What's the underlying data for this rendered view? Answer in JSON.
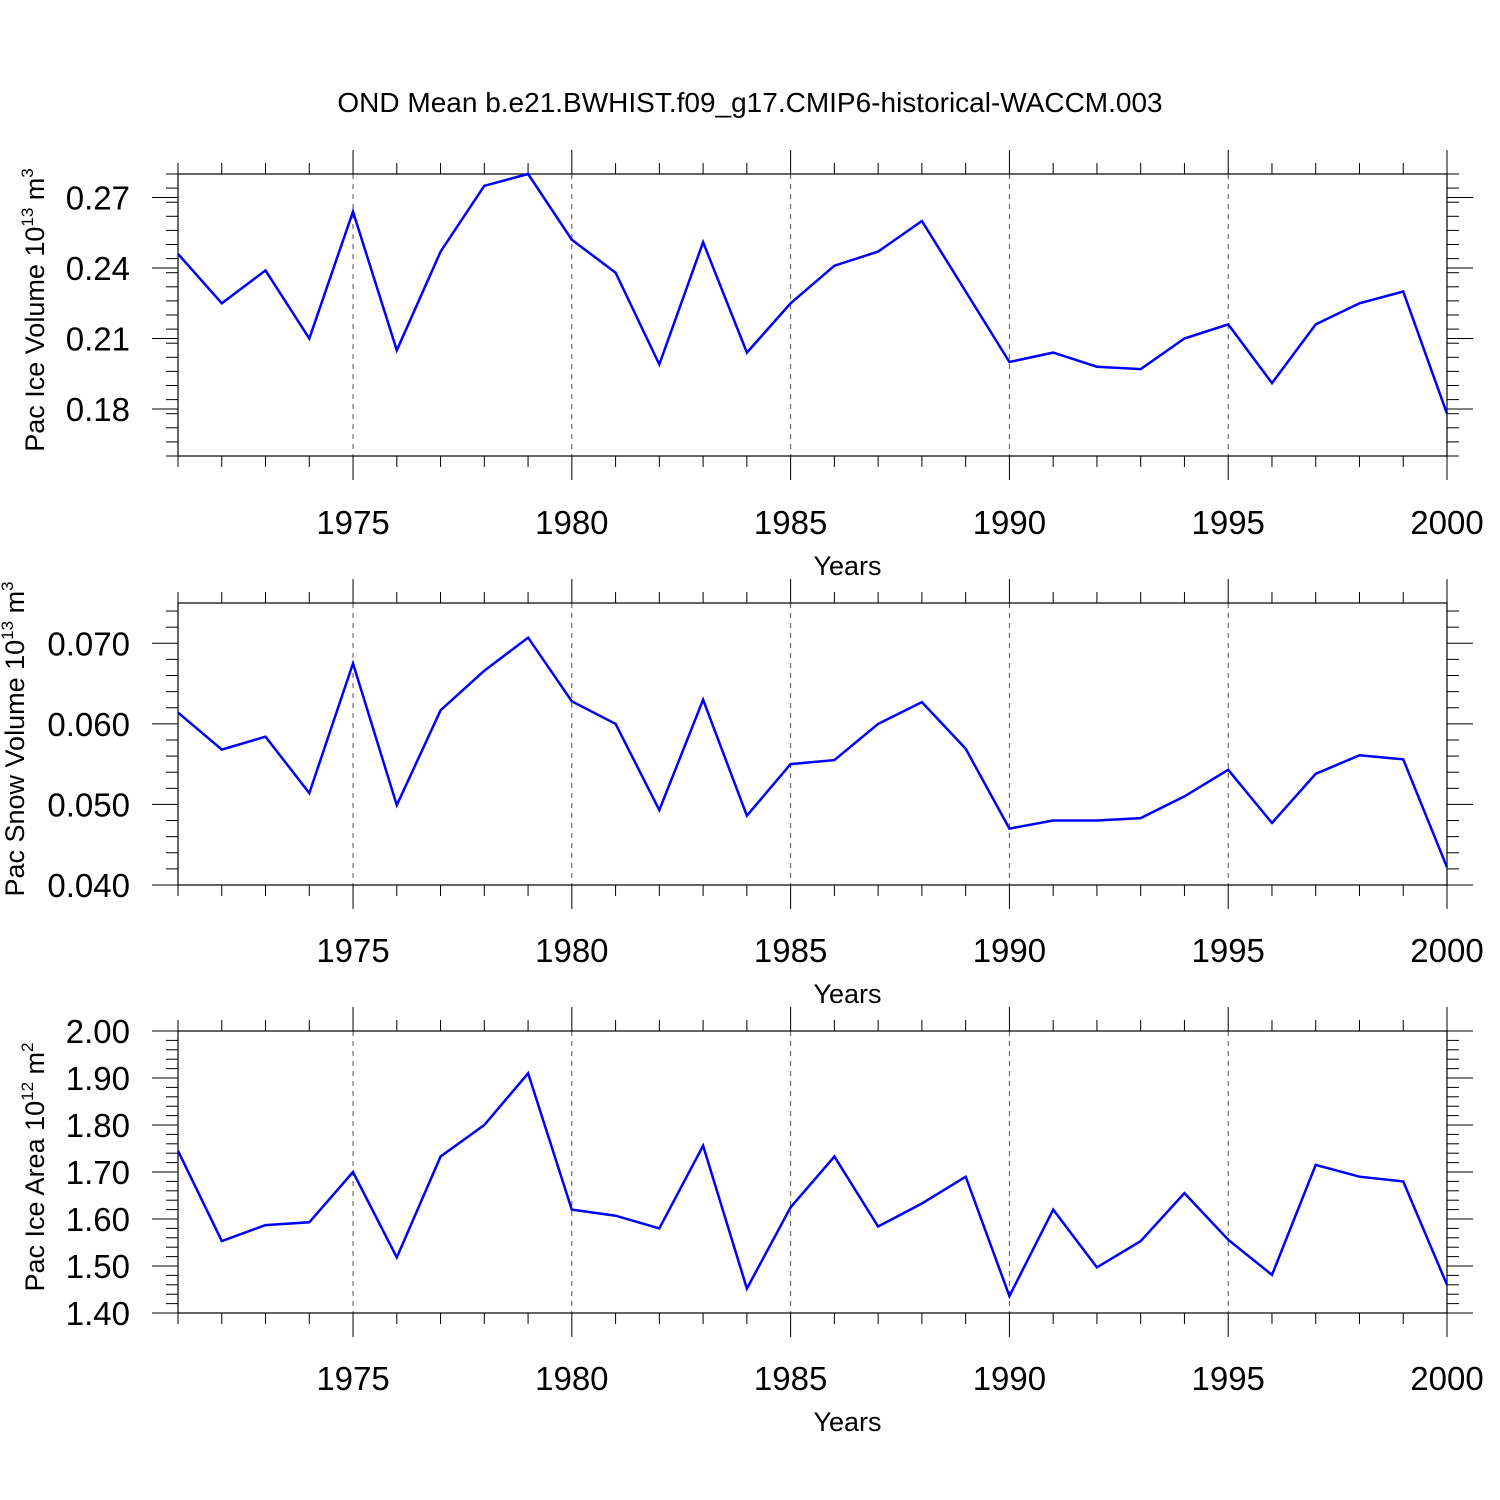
{
  "title": "OND Mean b.e21.BWHIST.f09_g17.CMIP6-historical-WACCM.003",
  "colors": {
    "series": "#0000ff",
    "axis": "#000000",
    "grid": "#555555"
  },
  "chart_data": [
    {
      "type": "line",
      "xlabel": "Years",
      "ylabel": {
        "text": "Pac Ice Volume 10",
        "exp": "13",
        "unit": " m",
        "unit_exp": "3"
      },
      "xlim": [
        1971,
        2000
      ],
      "ylim": [
        0.16,
        0.28
      ],
      "xticks": [
        1975,
        1980,
        1985,
        1990,
        1995,
        2000
      ],
      "yticks": [
        0.18,
        0.21,
        0.24,
        0.27
      ],
      "ytick_labels": [
        "0.18",
        "0.21",
        "0.24",
        "0.27"
      ],
      "grid": "vertical dashed",
      "x": [
        1971,
        1972,
        1973,
        1974,
        1975,
        1976,
        1977,
        1978,
        1979,
        1980,
        1981,
        1982,
        1983,
        1984,
        1985,
        1986,
        1987,
        1988,
        1989,
        1990,
        1991,
        1992,
        1993,
        1994,
        1995,
        1996,
        1997,
        1998,
        1999,
        2000
      ],
      "values": [
        0.246,
        0.225,
        0.239,
        0.21,
        0.264,
        0.205,
        0.247,
        0.275,
        0.28,
        0.252,
        0.238,
        0.199,
        0.251,
        0.204,
        0.225,
        0.241,
        0.247,
        0.26,
        0.23,
        0.2,
        0.204,
        0.198,
        0.197,
        0.21,
        0.216,
        0.191,
        0.216,
        0.225,
        0.23,
        0.178
      ]
    },
    {
      "type": "line",
      "xlabel": "Years",
      "ylabel": {
        "text": "Pac Snow Volume 10",
        "exp": "13",
        "unit": " m",
        "unit_exp": "3"
      },
      "xlim": [
        1971,
        2000
      ],
      "ylim": [
        0.04,
        0.075
      ],
      "xticks": [
        1975,
        1980,
        1985,
        1990,
        1995,
        2000
      ],
      "yticks": [
        0.04,
        0.05,
        0.06,
        0.07
      ],
      "ytick_labels": [
        "0.040",
        "0.050",
        "0.060",
        "0.070"
      ],
      "grid": "vertical dashed",
      "x": [
        1971,
        1972,
        1973,
        1974,
        1975,
        1976,
        1977,
        1978,
        1979,
        1980,
        1981,
        1982,
        1983,
        1984,
        1985,
        1986,
        1987,
        1988,
        1989,
        1990,
        1991,
        1992,
        1993,
        1994,
        1995,
        1996,
        1997,
        1998,
        1999,
        2000
      ],
      "values": [
        0.0614,
        0.0568,
        0.0584,
        0.0514,
        0.0675,
        0.0499,
        0.0617,
        0.0666,
        0.0707,
        0.0628,
        0.06,
        0.0493,
        0.063,
        0.0486,
        0.055,
        0.0555,
        0.06,
        0.0627,
        0.0569,
        0.047,
        0.048,
        0.048,
        0.0483,
        0.051,
        0.0543,
        0.0477,
        0.0538,
        0.0561,
        0.0556,
        0.0422
      ]
    },
    {
      "type": "line",
      "xlabel": "Years",
      "ylabel": {
        "text": "Pac Ice Area 10",
        "exp": "12",
        "unit": " m",
        "unit_exp": "2"
      },
      "xlim": [
        1971,
        2000
      ],
      "ylim": [
        1.4,
        2.0
      ],
      "xticks": [
        1975,
        1980,
        1985,
        1990,
        1995,
        2000
      ],
      "yticks": [
        1.4,
        1.5,
        1.6,
        1.7,
        1.8,
        1.9,
        2.0
      ],
      "ytick_labels": [
        "1.40",
        "1.50",
        "1.60",
        "1.70",
        "1.80",
        "1.90",
        "2.00"
      ],
      "grid": "vertical dashed",
      "x": [
        1971,
        1972,
        1973,
        1974,
        1975,
        1976,
        1977,
        1978,
        1979,
        1980,
        1981,
        1982,
        1983,
        1984,
        1985,
        1986,
        1987,
        1988,
        1989,
        1990,
        1991,
        1992,
        1993,
        1994,
        1995,
        1996,
        1997,
        1998,
        1999,
        2000
      ],
      "values": [
        1.745,
        1.553,
        1.587,
        1.593,
        1.7,
        1.518,
        1.733,
        1.8,
        1.91,
        1.62,
        1.607,
        1.58,
        1.756,
        1.452,
        1.625,
        1.733,
        1.584,
        1.633,
        1.69,
        1.436,
        1.62,
        1.497,
        1.553,
        1.655,
        1.556,
        1.481,
        1.715,
        1.69,
        1.68,
        1.46
      ]
    }
  ]
}
